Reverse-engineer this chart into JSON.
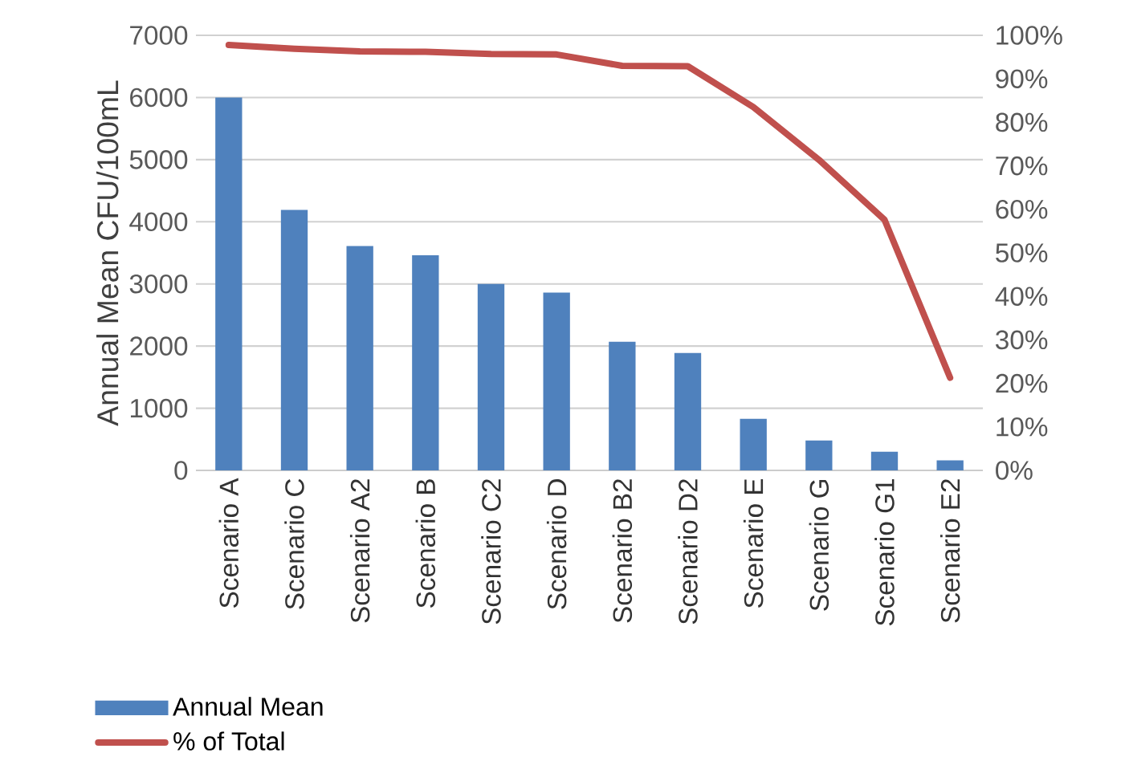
{
  "chart_data": {
    "type": "bar",
    "categories": [
      "Scenario A",
      "Scenario C",
      "Scenario A2",
      "Scenario B",
      "Scenario C2",
      "Scenario D",
      "Scenario B2",
      "Scenario D2",
      "Scenario E",
      "Scenario G",
      "Scenario G1",
      "Scenario E2"
    ],
    "series": [
      {
        "name": "Annual Mean",
        "color": "#4f81bd",
        "values": [
          6000,
          4190,
          3610,
          3460,
          3000,
          2860,
          2070,
          1890,
          830,
          480,
          300,
          160
        ]
      },
      {
        "name": "% of Total",
        "type": "line",
        "axis": "y2",
        "color": "#c0504d",
        "values": [
          97.8,
          96.9,
          96.3,
          96.2,
          95.7,
          95.6,
          93.0,
          92.9,
          83.5,
          71.4,
          57.6,
          21.3
        ]
      }
    ],
    "ylabel": "Annual Mean CFU/100mL",
    "ylim": [
      0,
      7000
    ],
    "yticks": [
      0,
      1000,
      2000,
      3000,
      4000,
      5000,
      6000,
      7000
    ],
    "y2lim": [
      0,
      100
    ],
    "y2ticks": [
      {
        "value": 0,
        "label": "0%"
      },
      {
        "value": 10,
        "label": "10%"
      },
      {
        "value": 20,
        "label": "20%"
      },
      {
        "value": 30,
        "label": "30%"
      },
      {
        "value": 40,
        "label": "40%"
      },
      {
        "value": 50,
        "label": "50%"
      },
      {
        "value": 60,
        "label": "60%"
      },
      {
        "value": 70,
        "label": "70%"
      },
      {
        "value": 80,
        "label": "80%"
      },
      {
        "value": 90,
        "label": "90%"
      },
      {
        "value": 100,
        "label": "100%"
      }
    ],
    "grid": "y",
    "legend": "bottom"
  }
}
